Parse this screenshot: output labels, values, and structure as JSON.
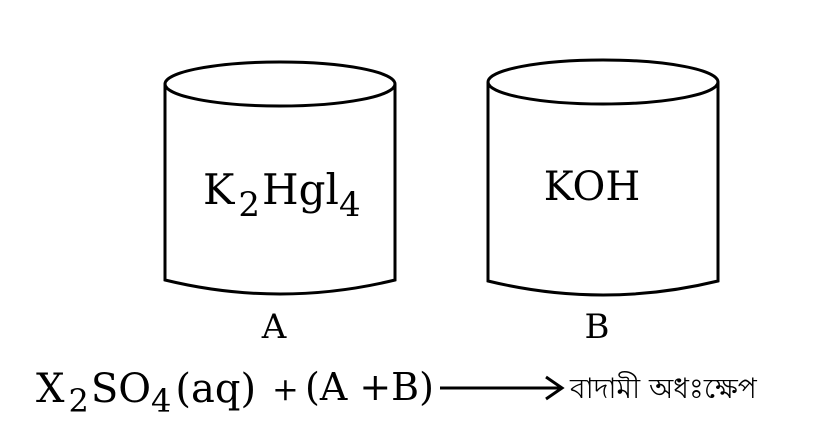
{
  "containers": [
    {
      "label": "A",
      "formula": {
        "p1": "K",
        "sub1": "2",
        "p2": "Hgl",
        "sub2": "4"
      }
    },
    {
      "label": "B",
      "formula": {
        "p1": "KOH"
      }
    }
  ],
  "equation": {
    "x": "X",
    "sub1": "2",
    "so": "SO",
    "sub2": "4",
    "aq": "(aq)",
    "plus": "+",
    "mix": "(A +B)",
    "product": "বাদামী অধঃক্ষেপ"
  }
}
